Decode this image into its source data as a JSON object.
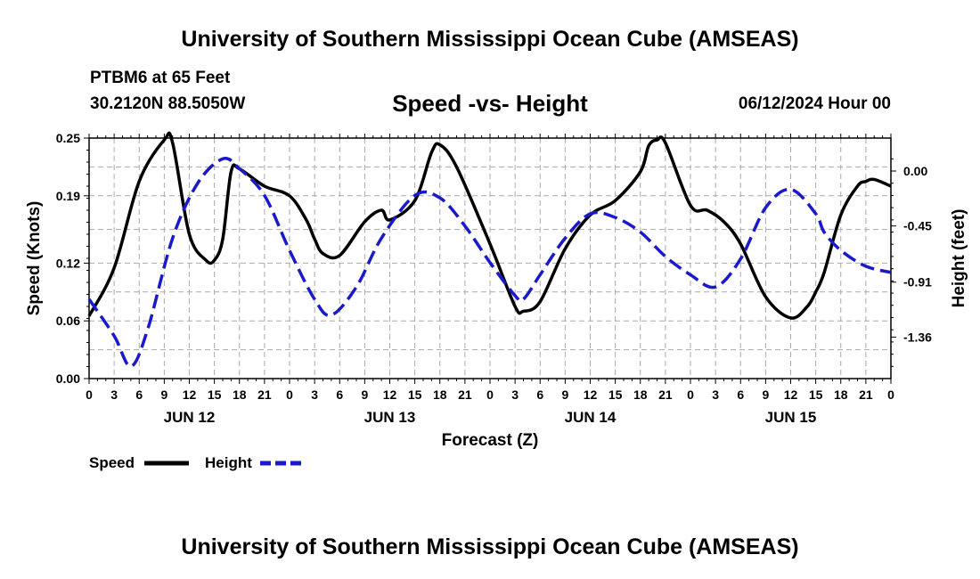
{
  "header": {
    "main_title": "University of Southern Mississippi Ocean Cube (AMSEAS)",
    "station": "PTBM6 at 65 Feet",
    "coords": "30.2120N  88.5050W",
    "chart_title": "Speed -vs- Height",
    "date": "06/12/2024 Hour 00",
    "footer_title": "University of Southern Mississippi Ocean Cube (AMSEAS)"
  },
  "colors": {
    "speed": "#000000",
    "height": "#1a1acc",
    "grid": "#aaaaaa"
  },
  "chart_data": {
    "type": "line",
    "title": "Speed -vs- Height",
    "xlabel": "Forecast (Z)",
    "ylabel": "Speed (Knots)",
    "y2label": "Height (feet)",
    "xlim": [
      0,
      96
    ],
    "ylim": [
      0,
      0.25
    ],
    "y2lim": [
      -1.7,
      0.27
    ],
    "yticks": [
      "0.00",
      "0.06",
      "0.12",
      "0.19",
      "0.25"
    ],
    "y2ticks": [
      {
        "label": "0.00",
        "value": 0.0
      },
      {
        "label": "-0.45",
        "value": -0.45
      },
      {
        "label": "-0.91",
        "value": -0.91
      },
      {
        "label": "-1.36",
        "value": -1.36
      }
    ],
    "xtick_labels": [
      "0",
      "3",
      "6",
      "9",
      "12",
      "15",
      "18",
      "21",
      "0",
      "3",
      "6",
      "9",
      "12",
      "15",
      "18",
      "21",
      "0",
      "3",
      "6",
      "9",
      "12",
      "15",
      "18",
      "21",
      "0",
      "3",
      "6",
      "9",
      "12",
      "15",
      "18",
      "21",
      "0"
    ],
    "day_labels": [
      {
        "label": "JUN 12",
        "x": 12
      },
      {
        "label": "JUN 13",
        "x": 36
      },
      {
        "label": "JUN 14",
        "x": 60
      },
      {
        "label": "JUN 15",
        "x": 84
      }
    ],
    "legend": [
      {
        "name": "Speed",
        "style": "solid"
      },
      {
        "name": "Height",
        "style": "dashed"
      }
    ],
    "series": [
      {
        "name": "Speed",
        "axis": "left",
        "x": [
          0,
          3,
          6,
          9,
          10,
          12,
          14,
          15,
          16,
          17,
          18,
          21,
          24,
          26,
          27,
          28,
          30,
          33,
          35,
          36,
          39,
          41,
          42,
          44,
          48,
          51,
          52,
          54,
          57,
          60,
          63,
          66,
          67,
          68,
          69,
          72,
          74,
          76,
          78,
          81,
          84,
          86,
          87,
          88,
          90,
          92,
          93,
          94,
          96
        ],
        "values": [
          0.065,
          0.115,
          0.205,
          0.248,
          0.245,
          0.15,
          0.123,
          0.123,
          0.145,
          0.215,
          0.218,
          0.2,
          0.19,
          0.165,
          0.145,
          0.13,
          0.128,
          0.163,
          0.175,
          0.165,
          0.185,
          0.235,
          0.243,
          0.22,
          0.14,
          0.075,
          0.07,
          0.08,
          0.135,
          0.17,
          0.185,
          0.215,
          0.242,
          0.248,
          0.245,
          0.18,
          0.175,
          0.163,
          0.14,
          0.085,
          0.063,
          0.075,
          0.09,
          0.11,
          0.17,
          0.2,
          0.205,
          0.207,
          0.2
        ]
      },
      {
        "name": "Height",
        "axis": "right",
        "x": [
          0,
          3,
          5,
          7,
          10,
          13,
          16,
          18,
          21,
          24,
          27,
          29,
          32,
          35,
          39,
          42,
          45,
          48,
          51,
          52,
          54,
          57,
          60,
          63,
          66,
          69,
          72,
          75,
          78,
          81,
          84,
          87,
          88,
          90,
          93,
          96
        ],
        "values": [
          -1.05,
          -1.35,
          -1.6,
          -1.3,
          -0.55,
          -0.1,
          0.1,
          0.02,
          -0.2,
          -0.65,
          -1.05,
          -1.18,
          -0.95,
          -0.55,
          -0.2,
          -0.22,
          -0.45,
          -0.75,
          -1.02,
          -1.05,
          -0.85,
          -0.55,
          -0.35,
          -0.38,
          -0.5,
          -0.7,
          -0.85,
          -0.95,
          -0.72,
          -0.3,
          -0.15,
          -0.35,
          -0.5,
          -0.65,
          -0.78,
          -0.83
        ]
      }
    ]
  }
}
